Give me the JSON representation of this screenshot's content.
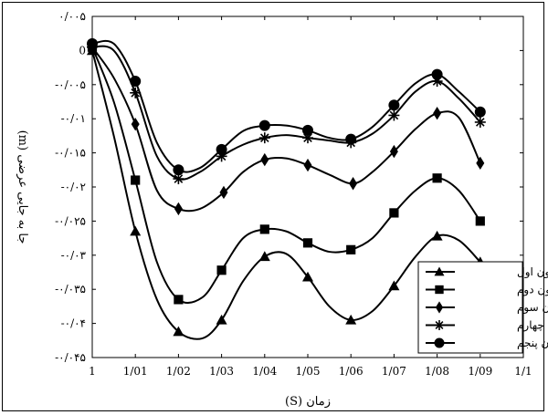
{
  "chart_data": {
    "type": "line",
    "xlabel": "زمان (S)",
    "ylabel": "جا به جایی عرضی (m)",
    "xlim": [
      1,
      1.1
    ],
    "ylim": [
      -0.045,
      0.005
    ],
    "x_ticks": [
      "1",
      "1/01",
      "1/02",
      "1/03",
      "1/04",
      "1/05",
      "1/06",
      "1/07",
      "1/08",
      "1/09",
      "1/1"
    ],
    "y_ticks": [
      "۰/۰۰۵",
      "0",
      "-۰/۰۰۵",
      "-۰/۰۱",
      "-۰/۰۱۵",
      "-۰/۰۲",
      "-۰/۰۲۵",
      "-۰/۰۳",
      "-۰/۰۳۵",
      "-۰/۰۴",
      "-۰/۰۴۵"
    ],
    "grid": false,
    "legend_position": "bottom-right",
    "series": [
      {
        "name": "ستون اول",
        "marker": "triangle",
        "x": [
          1.0,
          1.005,
          1.01,
          1.015,
          1.02,
          1.0255,
          1.03,
          1.035,
          1.04,
          1.045,
          1.05,
          1.055,
          1.06,
          1.065,
          1.07,
          1.075,
          1.08,
          1.085,
          1.09
        ],
        "y": [
          0.0,
          -0.0125,
          -0.0265,
          -0.0365,
          -0.0412,
          -0.0422,
          -0.0395,
          -0.0338,
          -0.0302,
          -0.0298,
          -0.0332,
          -0.0375,
          -0.0395,
          -0.0382,
          -0.0345,
          -0.0302,
          -0.0272,
          -0.0278,
          -0.031
        ]
      },
      {
        "name": "ستون دوم",
        "marker": "square",
        "x": [
          1.0,
          1.005,
          1.01,
          1.015,
          1.02,
          1.0255,
          1.03,
          1.035,
          1.04,
          1.045,
          1.05,
          1.055,
          1.06,
          1.065,
          1.07,
          1.075,
          1.08,
          1.085,
          1.09
        ],
        "y": [
          0.0005,
          -0.0075,
          -0.019,
          -0.031,
          -0.0365,
          -0.0362,
          -0.0322,
          -0.0275,
          -0.0262,
          -0.0265,
          -0.0282,
          -0.0295,
          -0.0292,
          -0.0275,
          -0.0238,
          -0.0205,
          -0.0187,
          -0.0205,
          -0.025
        ]
      },
      {
        "name": "ستون سوم",
        "marker": "diamond",
        "x": [
          1.0,
          1.005,
          1.01,
          1.015,
          1.02,
          1.025,
          1.0305,
          1.035,
          1.04,
          1.045,
          1.05,
          1.055,
          1.0605,
          1.065,
          1.07,
          1.075,
          1.08,
          1.085,
          1.09
        ],
        "y": [
          0.0005,
          -0.004,
          -0.0108,
          -0.0205,
          -0.0232,
          -0.0232,
          -0.0208,
          -0.0178,
          -0.016,
          -0.0158,
          -0.0168,
          -0.0182,
          -0.0195,
          -0.0178,
          -0.0148,
          -0.0115,
          -0.0092,
          -0.0098,
          -0.0165
        ]
      },
      {
        "name": "ستون چهارم",
        "marker": "star",
        "x": [
          1.0,
          1.005,
          1.01,
          1.015,
          1.02,
          1.025,
          1.03,
          1.035,
          1.04,
          1.045,
          1.05,
          1.055,
          1.06,
          1.065,
          1.07,
          1.075,
          1.08,
          1.085,
          1.09
        ],
        "y": [
          0.0005,
          0.0,
          -0.0062,
          -0.0155,
          -0.0188,
          -0.0178,
          -0.0155,
          -0.0138,
          -0.0128,
          -0.0124,
          -0.0128,
          -0.0132,
          -0.0135,
          -0.0122,
          -0.0095,
          -0.006,
          -0.0045,
          -0.007,
          -0.0105
        ]
      },
      {
        "name": "ستون پنجم",
        "marker": "circle",
        "x": [
          1.0,
          1.005,
          1.01,
          1.015,
          1.02,
          1.025,
          1.03,
          1.035,
          1.04,
          1.045,
          1.05,
          1.055,
          1.06,
          1.065,
          1.07,
          1.075,
          1.08,
          1.085,
          1.09
        ],
        "y": [
          0.001,
          0.001,
          -0.0045,
          -0.0135,
          -0.0175,
          -0.0172,
          -0.0145,
          -0.0118,
          -0.011,
          -0.011,
          -0.0117,
          -0.0128,
          -0.013,
          -0.0112,
          -0.008,
          -0.0048,
          -0.0035,
          -0.006,
          -0.009
        ]
      }
    ]
  }
}
